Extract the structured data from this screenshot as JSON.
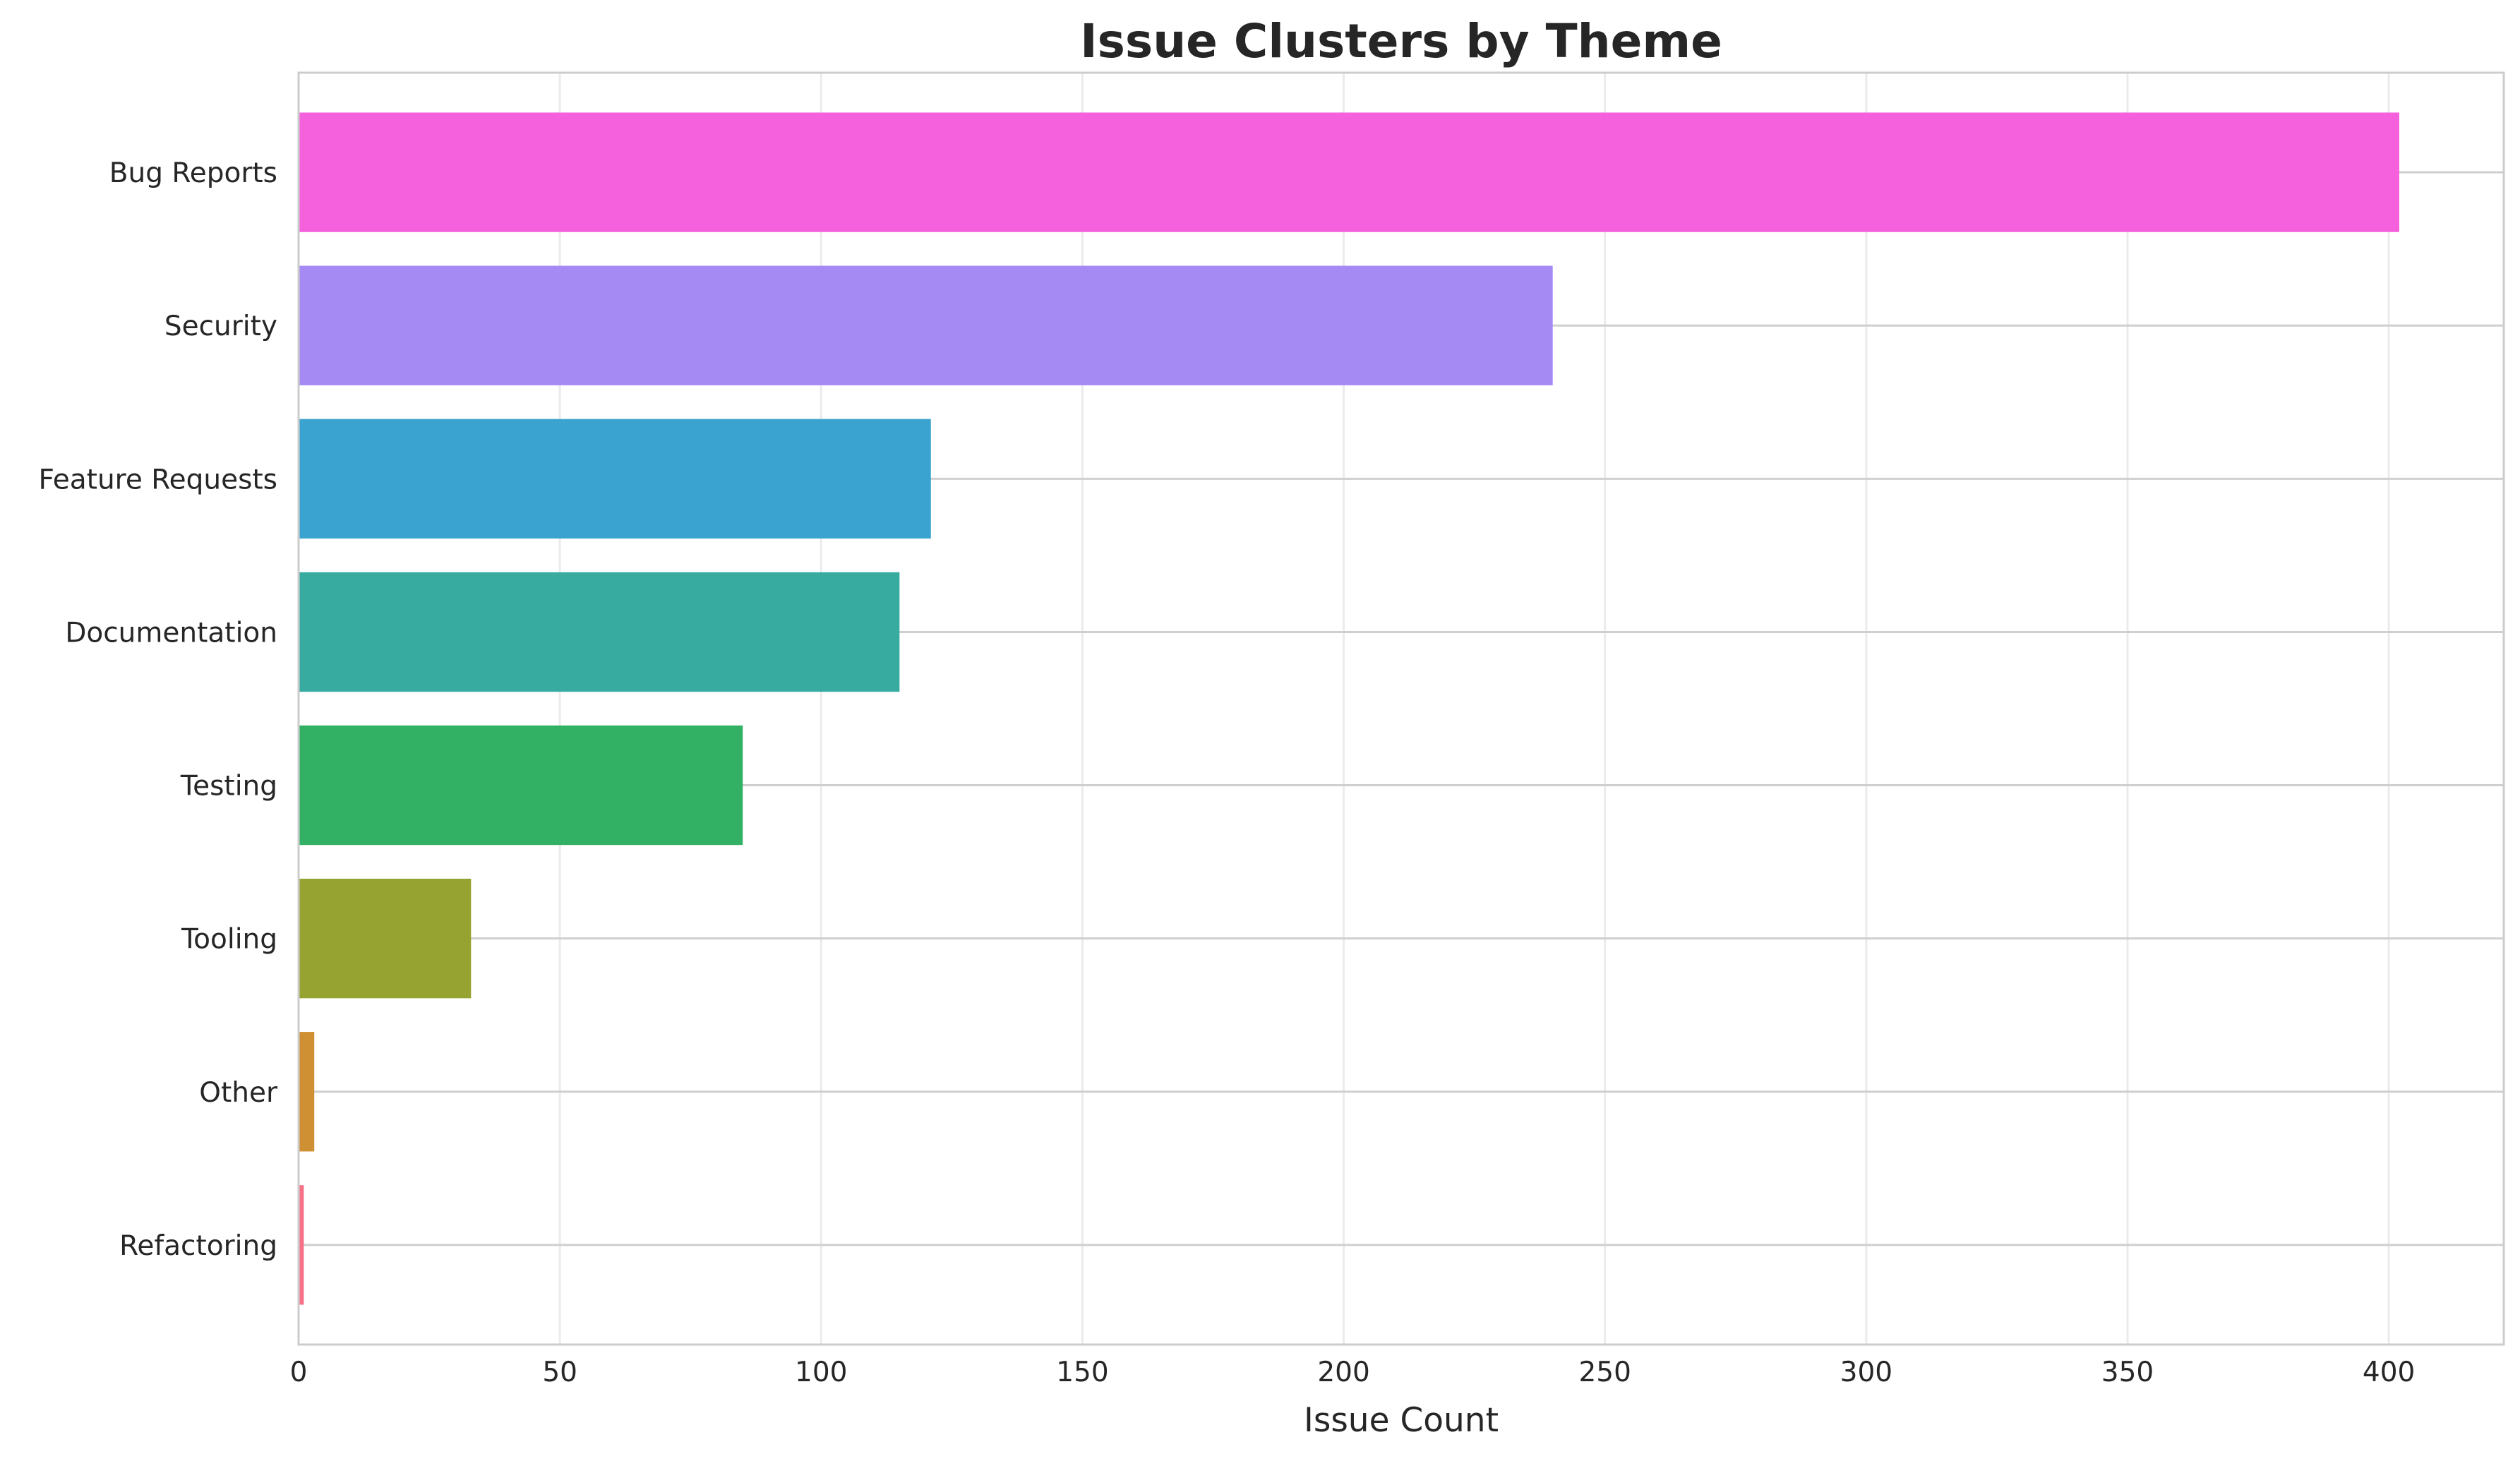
{
  "chart_data": {
    "type": "bar",
    "orientation": "horizontal",
    "title": "Issue Clusters by Theme",
    "xlabel": "Issue Count",
    "ylabel": "",
    "categories": [
      "Bug Reports",
      "Security",
      "Feature Requests",
      "Documentation",
      "Testing",
      "Tooling",
      "Other",
      "Refactoring"
    ],
    "values": [
      402,
      240,
      121,
      115,
      85,
      33,
      3,
      1
    ],
    "colors": [
      "#f561dd",
      "#a58af4",
      "#3ba3d0",
      "#37ab9f",
      "#32b165",
      "#96a331",
      "#ce9032",
      "#f77189"
    ],
    "xlim": [
      0,
      422
    ],
    "xticks": [
      0,
      50,
      100,
      150,
      200,
      250,
      300,
      350,
      400
    ],
    "grid": true,
    "legend": false
  }
}
